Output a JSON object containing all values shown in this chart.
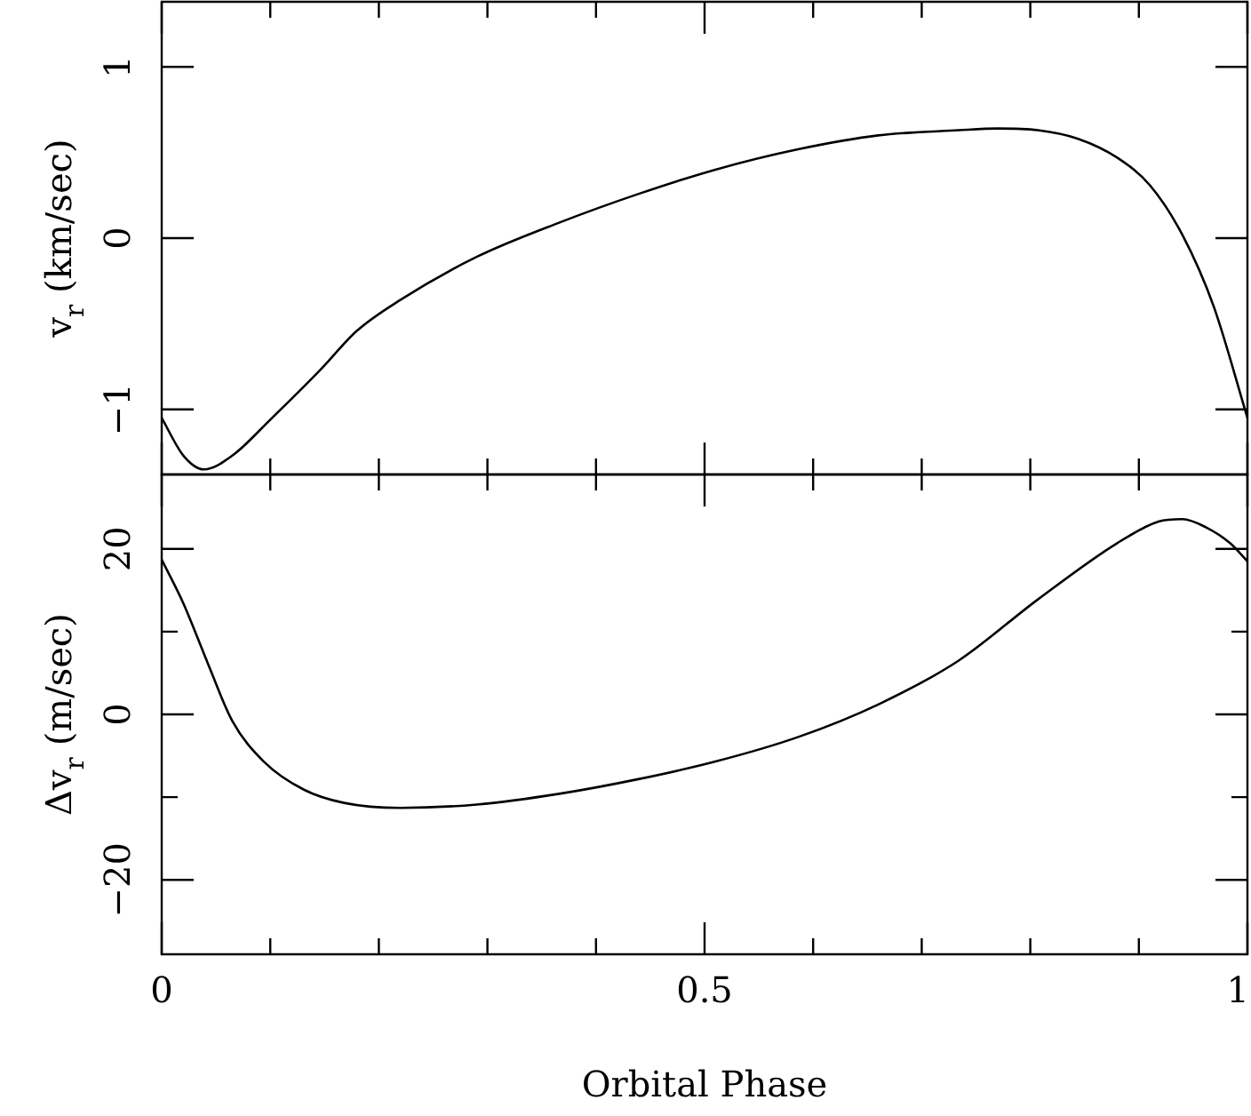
{
  "chart_data": [
    {
      "type": "line",
      "ylabel": "v$_{r}$ (km/sec)",
      "color": "#000000",
      "tick_labels": "y",
      "x": [
        0,
        0.02,
        0.039,
        0.065,
        0.1,
        0.146,
        0.18,
        0.22,
        0.29,
        0.366,
        0.44,
        0.51,
        0.587,
        0.66,
        0.734,
        0.77,
        0.807,
        0.844,
        0.88,
        0.91,
        0.94,
        0.969,
        1
      ],
      "values": [
        -1.05,
        -1.27,
        -1.35,
        -1.27,
        -1.06,
        -0.77,
        -0.54,
        -0.36,
        -0.11,
        0.09,
        0.26,
        0.4,
        0.52,
        0.6,
        0.63,
        0.64,
        0.63,
        0.58,
        0.47,
        0.31,
        0.02,
        -0.4,
        -1.05
      ],
      "xlim": [
        0,
        1
      ],
      "xticks": [
        0,
        {
          "value": 0.1,
          "label": null
        },
        {
          "value": 0.2,
          "label": null
        },
        {
          "value": 0.3,
          "label": null
        },
        {
          "value": 0.4,
          "label": null
        },
        0.5,
        {
          "value": 0.6,
          "label": null
        },
        {
          "value": 0.7,
          "label": null
        },
        {
          "value": 0.8,
          "label": null
        },
        {
          "value": 0.9,
          "label": null
        },
        1
      ],
      "ylim": [
        -1.38,
        1.38
      ],
      "yticks": [
        -1,
        0,
        1
      ]
    },
    {
      "type": "line",
      "xlabel": "Orbital Phase",
      "ylabel": "Δv$_{r}$ (m/sec)",
      "color": "#000000",
      "x": [
        0,
        0.02,
        0.043,
        0.065,
        0.094,
        0.131,
        0.168,
        0.22,
        0.29,
        0.366,
        0.44,
        0.51,
        0.587,
        0.66,
        0.734,
        0.807,
        0.88,
        0.918,
        0.94,
        0.962,
        0.984,
        1
      ],
      "values": [
        18.7,
        13.4,
        6,
        -0.8,
        -5.7,
        -9.1,
        -10.7,
        -11.3,
        -10.9,
        -9.6,
        -7.8,
        -5.7,
        -2.7,
        1.2,
        6.5,
        13.9,
        20.7,
        23.3,
        23.6,
        22.6,
        20.7,
        18.5
      ],
      "xlim": [
        0,
        1
      ],
      "xticks": [
        0,
        {
          "value": 0.1,
          "label": null
        },
        {
          "value": 0.2,
          "label": null
        },
        {
          "value": 0.3,
          "label": null
        },
        {
          "value": 0.4,
          "label": null
        },
        0.5,
        {
          "value": 0.6,
          "label": null
        },
        {
          "value": 0.7,
          "label": null
        },
        {
          "value": 0.8,
          "label": null
        },
        {
          "value": 0.9,
          "label": null
        },
        1
      ],
      "ylim": [
        -29,
        29
      ],
      "yticks": [
        -20,
        {
          "value": -10,
          "label": null
        },
        0,
        {
          "value": 10,
          "label": null
        },
        20
      ]
    }
  ]
}
